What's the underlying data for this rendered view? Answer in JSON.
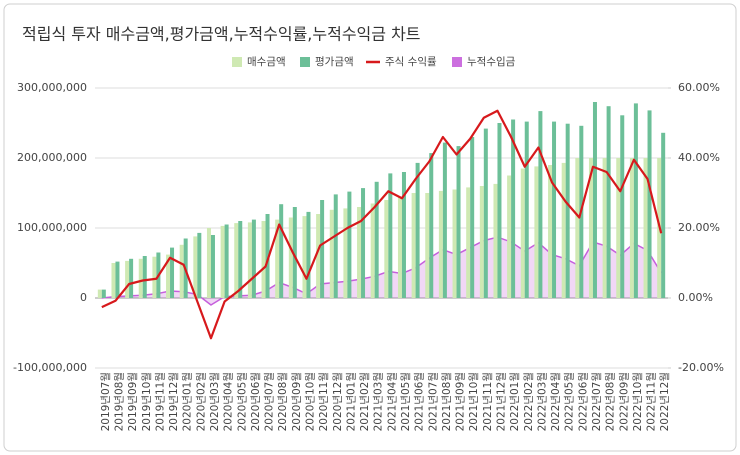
{
  "chart_data": {
    "type": "combo",
    "title": "적립식 투자 매수금액,평가금액,누적수익률,누적수익금 차트",
    "categories": [
      "2019년07월",
      "2019년08월",
      "2019년09월",
      "2019년10월",
      "2019년11월",
      "2019년12월",
      "2020년01월",
      "2020년02월",
      "2020년03월",
      "2020년04월",
      "2020년05월",
      "2020년06월",
      "2020년07월",
      "2020년08월",
      "2020년09월",
      "2020년10월",
      "2020년11월",
      "2020년12월",
      "2021년01월",
      "2021년02월",
      "2021년03월",
      "2021년04월",
      "2021년05월",
      "2021년06월",
      "2021년07월",
      "2021년08월",
      "2021년09월",
      "2021년10월",
      "2021년11월",
      "2021년12월",
      "2022년01월",
      "2022년02월",
      "2022년03월",
      "2022년04월",
      "2022년05월",
      "2022년06월",
      "2022년07월",
      "2022년08월",
      "2022년09월",
      "2022년10월",
      "2022년11월",
      "2022년12월"
    ],
    "series": [
      {
        "name": "매수금액",
        "type": "bar",
        "color": "#cfe9b3",
        "values": [
          12000000,
          50000000,
          53000000,
          56000000,
          59000000,
          62000000,
          76000000,
          88000000,
          100000000,
          103000000,
          107000000,
          108000000,
          110000000,
          112000000,
          115000000,
          117000000,
          120000000,
          126000000,
          128000000,
          130000000,
          135000000,
          140000000,
          145000000,
          150000000,
          150000000,
          153000000,
          155000000,
          158000000,
          160000000,
          163000000,
          175000000,
          185000000,
          188000000,
          190000000,
          193000000,
          200000000,
          200000000,
          200000000,
          200000000,
          200000000,
          200000000,
          200000000
        ]
      },
      {
        "name": "평가금액",
        "type": "bar",
        "color": "#6cbf98",
        "values": [
          12000000,
          52000000,
          56000000,
          60000000,
          65000000,
          72000000,
          85000000,
          93000000,
          90000000,
          105000000,
          110000000,
          112000000,
          120000000,
          134000000,
          130000000,
          123000000,
          140000000,
          148000000,
          152000000,
          157000000,
          166000000,
          178000000,
          180000000,
          193000000,
          207000000,
          222000000,
          217000000,
          230000000,
          242000000,
          250000000,
          255000000,
          252000000,
          267000000,
          252000000,
          249000000,
          246000000,
          280000000,
          274000000,
          261000000,
          278000000,
          268000000,
          236000000
        ]
      },
      {
        "name": "주식 수익률",
        "type": "line",
        "axis": "y2",
        "color": "#d7191c",
        "values": [
          -2.6,
          -0.8,
          4,
          5,
          5.5,
          11.5,
          9.5,
          -1,
          -11.5,
          -1,
          2,
          5.5,
          9,
          21,
          13,
          5.5,
          15,
          17.5,
          20,
          22,
          26,
          30.5,
          28.5,
          34,
          39,
          46,
          41,
          45.5,
          51.5,
          53.5,
          46,
          37.5,
          43,
          33,
          27.5,
          23,
          37.5,
          36,
          30.5,
          39.5,
          34,
          18.5
        ]
      },
      {
        "name": "누적수입금",
        "type": "area",
        "color": "#c65fdc",
        "values": [
          0,
          2000000,
          3000000,
          4000000,
          6000000,
          10000000,
          9000000,
          5000000,
          -10000000,
          2000000,
          3000000,
          4000000,
          10000000,
          22000000,
          15000000,
          6000000,
          20000000,
          22000000,
          24000000,
          27000000,
          31000000,
          38000000,
          35000000,
          43000000,
          57000000,
          69000000,
          62000000,
          72000000,
          82000000,
          87000000,
          80000000,
          67000000,
          79000000,
          62000000,
          56000000,
          46000000,
          80000000,
          74000000,
          61000000,
          78000000,
          68000000,
          36000000
        ]
      }
    ],
    "ylim": [
      -100000000,
      300000000
    ],
    "yticks": [
      {
        "value": -100000000,
        "label": "-100,000,000"
      },
      0,
      {
        "value": 100000000,
        "label": "100,000,000"
      },
      {
        "value": 200000000,
        "label": "200,000,000"
      },
      {
        "value": 300000000,
        "label": "300,000,000"
      }
    ],
    "y2lim": [
      -20,
      60
    ],
    "y2ticks": [
      {
        "value": -20,
        "label": "-20.00%"
      },
      {
        "value": 0,
        "label": "0.00%"
      },
      {
        "value": 20,
        "label": "20.00%"
      },
      {
        "value": 40,
        "label": "40.00%"
      },
      {
        "value": 60,
        "label": "60.00%"
      }
    ],
    "grid": true
  }
}
